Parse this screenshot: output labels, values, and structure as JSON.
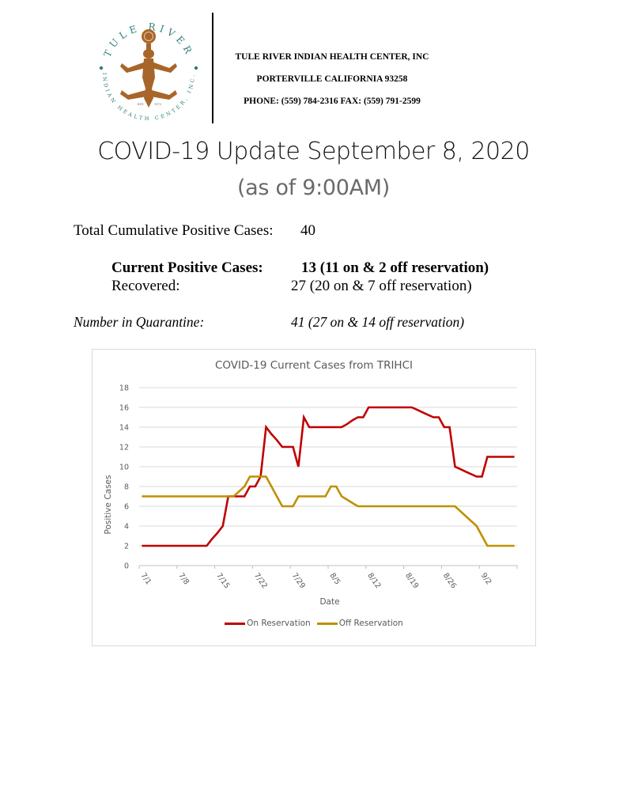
{
  "letterhead": {
    "logo": {
      "top_arc_text": "TULE RIVER",
      "bottom_arc_text": "INDIAN HEALTH CENTER, INC.",
      "est_left": "EST.",
      "est_right": "1973",
      "figure_color": "#A8652A",
      "text_color": "#2E7F7A"
    },
    "org_name": "TULE RIVER INDIAN HEALTH CENTER, INC",
    "address": "PORTERVILLE CALIFORNIA 93258",
    "contact": "PHONE: (559) 784-2316 FAX: (559) 791-2599"
  },
  "title": "COVID-19 Update September 8, 2020",
  "subtitle": "(as of 9:00AM)",
  "stats": {
    "total_label": "Total Cumulative Positive Cases:",
    "total_value": "40",
    "current_label": "Current Positive Cases:",
    "current_value": "13 (11 on & 2 off reservation)",
    "recovered_label": "Recovered:",
    "recovered_value": "27 (20 on & 7 off reservation)",
    "quarantine_label": "Number in Quarantine:",
    "quarantine_value": "41 (27 on & 14 off reservation)"
  },
  "chart": {
    "title": "COVID-19 Current Cases from TRIHCI",
    "xlabel": "Date",
    "ylabel": "Positive Cases",
    "legend": [
      {
        "label": "On Reservation",
        "color": "#C00000"
      },
      {
        "label": "Off Reservation",
        "color": "#BF9000"
      }
    ]
  },
  "chart_data": {
    "type": "line",
    "title": "COVID-19 Current Cases from TRIHCI",
    "xlabel": "Date",
    "ylabel": "Positive Cases",
    "ylim": [
      0,
      18
    ],
    "yticks": [
      0,
      2,
      4,
      6,
      8,
      10,
      12,
      14,
      16,
      18
    ],
    "xtick_labels": [
      "7/1",
      "7/8",
      "7/15",
      "7/22",
      "7/29",
      "8/5",
      "8/12",
      "8/19",
      "8/26",
      "9/2"
    ],
    "grid": true,
    "legend_position": "bottom",
    "x": [
      "7/1",
      "7/2",
      "7/3",
      "7/4",
      "7/5",
      "7/6",
      "7/7",
      "7/8",
      "7/9",
      "7/10",
      "7/11",
      "7/12",
      "7/13",
      "7/14",
      "7/15",
      "7/16",
      "7/17",
      "7/18",
      "7/19",
      "7/20",
      "7/21",
      "7/22",
      "7/23",
      "7/24",
      "7/25",
      "7/26",
      "7/27",
      "7/28",
      "7/29",
      "7/30",
      "7/31",
      "8/1",
      "8/2",
      "8/3",
      "8/4",
      "8/5",
      "8/6",
      "8/7",
      "8/8",
      "8/9",
      "8/10",
      "8/11",
      "8/12",
      "8/13",
      "8/14",
      "8/15",
      "8/16",
      "8/17",
      "8/18",
      "8/19",
      "8/20",
      "8/21",
      "8/22",
      "8/23",
      "8/24",
      "8/25",
      "8/26",
      "8/27",
      "8/28",
      "8/29",
      "8/30",
      "8/31",
      "9/1",
      "9/2",
      "9/3",
      "9/4",
      "9/5",
      "9/6",
      "9/7",
      "9/8"
    ],
    "series": [
      {
        "name": "On Reservation",
        "color": "#C00000",
        "values": [
          2,
          2,
          2,
          2,
          2,
          2,
          2,
          2,
          2,
          2,
          2,
          2,
          2,
          2.7,
          3.3,
          4,
          7,
          7,
          7,
          7,
          8,
          8,
          9,
          14,
          13.3,
          12.7,
          12,
          12,
          12,
          10,
          15,
          14,
          14,
          14,
          14,
          14,
          14,
          14,
          14.3,
          14.7,
          15,
          15,
          16,
          16,
          16,
          16,
          16,
          16,
          16,
          16,
          16,
          15.75,
          15.5,
          15.25,
          15,
          15,
          14,
          14,
          10,
          9.75,
          9.5,
          9.25,
          9,
          9,
          11,
          11,
          11,
          11,
          11,
          11
        ]
      },
      {
        "name": "Off Reservation",
        "color": "#BF9000",
        "values": [
          7,
          7,
          7,
          7,
          7,
          7,
          7,
          7,
          7,
          7,
          7,
          7,
          7,
          7,
          7,
          7,
          7,
          7,
          7.5,
          8,
          9,
          9,
          9,
          9,
          8,
          7,
          6,
          6,
          6,
          7,
          7,
          7,
          7,
          7,
          7,
          8,
          8,
          7,
          6.67,
          6.33,
          6,
          6,
          6,
          6,
          6,
          6,
          6,
          6,
          6,
          6,
          6,
          6,
          6,
          6,
          6,
          6,
          6,
          6,
          6,
          5.5,
          5,
          4.5,
          4,
          3,
          2,
          2,
          2,
          2,
          2,
          2
        ]
      }
    ]
  }
}
